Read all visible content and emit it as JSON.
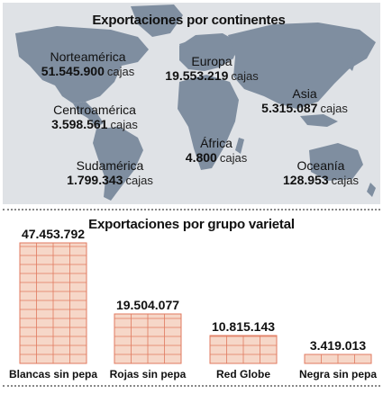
{
  "map": {
    "title": "Exportaciones por continentes",
    "unit": "cajas",
    "regions": [
      {
        "name": "Norteamérica",
        "value": "51.545.900"
      },
      {
        "name": "Europa",
        "value": "19.553.219"
      },
      {
        "name": "Centroamérica",
        "value": "3.598.561"
      },
      {
        "name": "Asia",
        "value": "5.315.087"
      },
      {
        "name": "África",
        "value": "4.800"
      },
      {
        "name": "Sudamérica",
        "value": "1.799.343"
      },
      {
        "name": "Oceanía",
        "value": "128.953"
      }
    ],
    "colors": {
      "background": "#dfe2e6",
      "land": "#7f8ea0"
    }
  },
  "chart_data": {
    "type": "bar",
    "title": "Exportaciones por grupo varietal",
    "categories": [
      "Blancas sin pepa",
      "Rojas sin pepa",
      "Red Globe",
      "Negra sin pepa"
    ],
    "values": [
      47453792,
      19504077,
      10815143,
      3419013
    ],
    "value_labels": [
      "47.453.792",
      "19.504.077",
      "10.815.143",
      "3.419.013"
    ],
    "xlabel": "",
    "ylabel": "",
    "colors": {
      "box_fill": "#f6d7c8",
      "box_stroke": "#e07a5f"
    }
  }
}
